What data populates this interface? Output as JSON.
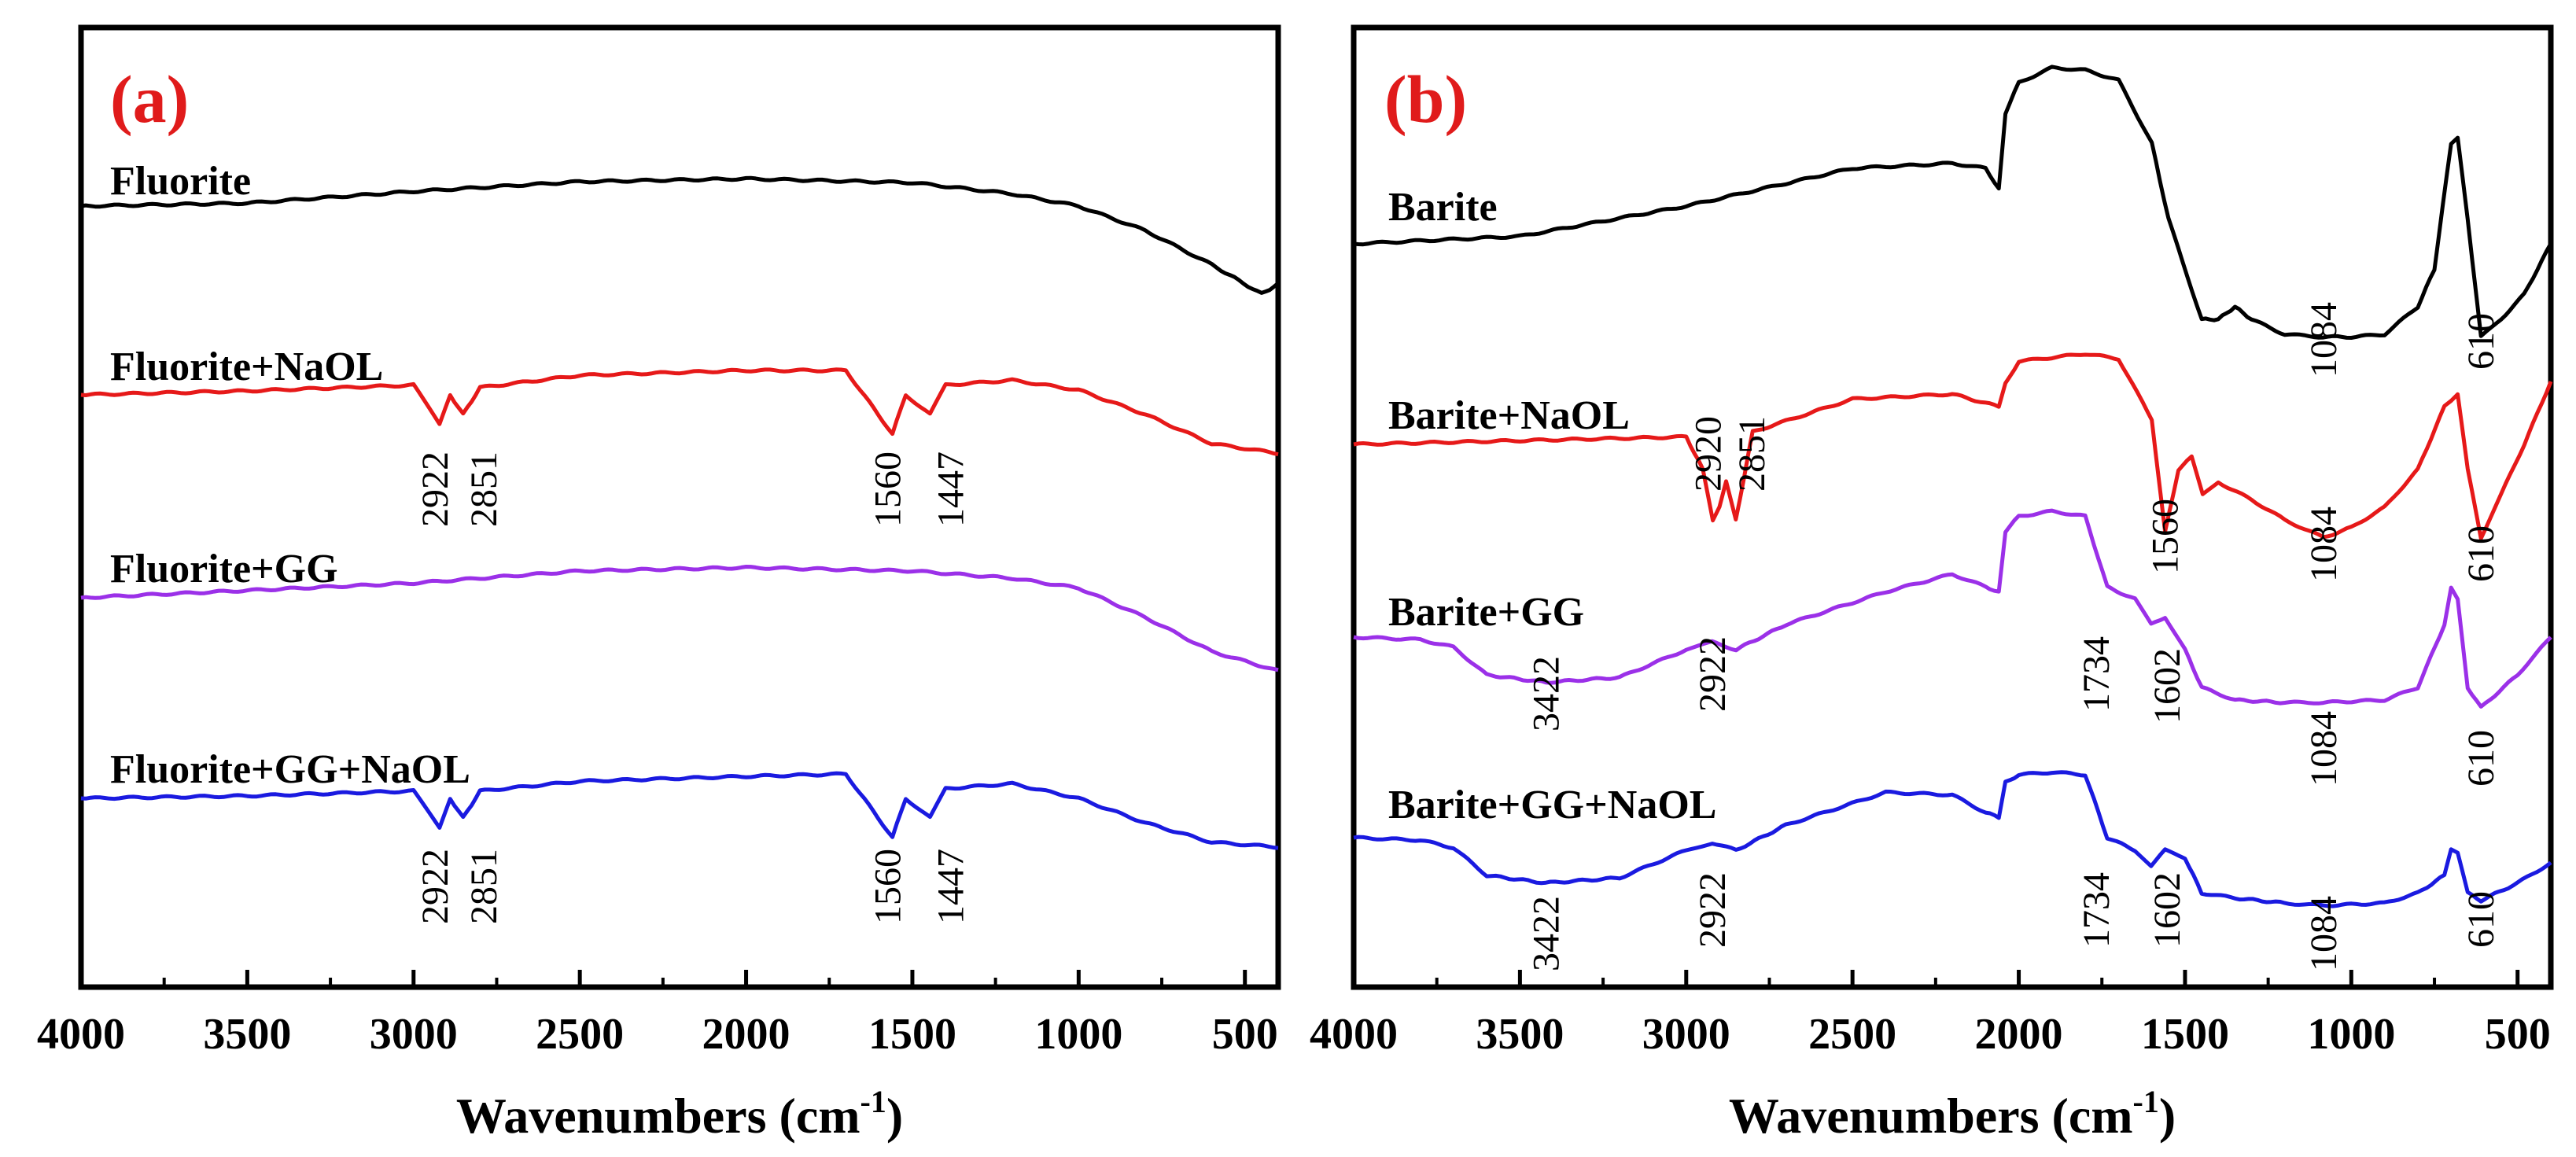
{
  "chart_data": [
    {
      "type": "line",
      "panel_label": "(a)",
      "xlabel": "Wavenumbers (cm",
      "xlabel_sup": "-1",
      "xlabel_close": ")",
      "xlim": [
        4000,
        400
      ],
      "xticks": [
        4000,
        3500,
        3000,
        2500,
        2000,
        1500,
        1000,
        500
      ],
      "colors": {
        "panel_label": "#e01b1b"
      },
      "series": [
        {
          "name": "Fluorite",
          "color": "#000000",
          "points": [
            [
              4000,
              0.0
            ],
            [
              3500,
              0.006
            ],
            [
              3000,
              0.03
            ],
            [
              2500,
              0.05
            ],
            [
              2000,
              0.056
            ],
            [
              1500,
              0.048
            ],
            [
              1200,
              0.025
            ],
            [
              1000,
              0.0
            ],
            [
              800,
              -0.05
            ],
            [
              600,
              -0.12
            ],
            [
              450,
              -0.18
            ],
            [
              400,
              -0.16
            ]
          ],
          "peaks": [],
          "peak_labels": []
        },
        {
          "name": "Fluorite+NaOL",
          "color": "#e61919",
          "points": [
            [
              4000,
              0.0
            ],
            [
              3500,
              0.008
            ],
            [
              3000,
              0.02
            ],
            [
              2922,
              -0.06
            ],
            [
              2890,
              0.0
            ],
            [
              2851,
              -0.04
            ],
            [
              2800,
              0.015
            ],
            [
              2500,
              0.04
            ],
            [
              2000,
              0.05
            ],
            [
              1700,
              0.05
            ],
            [
              1560,
              -0.08
            ],
            [
              1520,
              0.0
            ],
            [
              1447,
              -0.04
            ],
            [
              1400,
              0.02
            ],
            [
              1200,
              0.03
            ],
            [
              1000,
              0.01
            ],
            [
              800,
              -0.04
            ],
            [
              600,
              -0.1
            ],
            [
              400,
              -0.12
            ]
          ],
          "peaks": [],
          "peak_labels": [
            "2922",
            "2851",
            "1560",
            "1447"
          ]
        },
        {
          "name": "Fluorite+GG",
          "color": "#9b30e8",
          "points": [
            [
              4000,
              0.0
            ],
            [
              3500,
              0.015
            ],
            [
              3000,
              0.03
            ],
            [
              2500,
              0.055
            ],
            [
              2000,
              0.062
            ],
            [
              1500,
              0.055
            ],
            [
              1200,
              0.04
            ],
            [
              1000,
              0.02
            ],
            [
              800,
              -0.04
            ],
            [
              600,
              -0.11
            ],
            [
              400,
              -0.15
            ]
          ],
          "peaks": [],
          "peak_labels": []
        },
        {
          "name": "Fluorite+GG+NaOL",
          "color": "#1a1ae0",
          "points": [
            [
              4000,
              0.0
            ],
            [
              3500,
              0.005
            ],
            [
              3000,
              0.015
            ],
            [
              2922,
              -0.06
            ],
            [
              2890,
              0.0
            ],
            [
              2851,
              -0.04
            ],
            [
              2800,
              0.015
            ],
            [
              2500,
              0.035
            ],
            [
              2000,
              0.045
            ],
            [
              1700,
              0.05
            ],
            [
              1560,
              -0.08
            ],
            [
              1520,
              0.0
            ],
            [
              1447,
              -0.04
            ],
            [
              1400,
              0.02
            ],
            [
              1200,
              0.03
            ],
            [
              1000,
              0.0
            ],
            [
              800,
              -0.05
            ],
            [
              600,
              -0.09
            ],
            [
              400,
              -0.1
            ]
          ],
          "peaks": [],
          "peak_labels": [
            "2922",
            "2851",
            "1560",
            "1447"
          ]
        }
      ]
    },
    {
      "type": "line",
      "panel_label": "(b)",
      "xlabel": "Wavenumbers (cm",
      "xlabel_sup": "-1",
      "xlabel_close": ")",
      "xlim": [
        4000,
        400
      ],
      "xticks": [
        4000,
        3500,
        3000,
        2500,
        2000,
        1500,
        1000,
        500
      ],
      "colors": {
        "panel_label": "#e01b1b"
      },
      "series": [
        {
          "name": "Barite",
          "color": "#000000",
          "points": [
            [
              4000,
              0.0
            ],
            [
              3500,
              0.03
            ],
            [
              3000,
              0.15
            ],
            [
              2500,
              0.3
            ],
            [
              2200,
              0.32
            ],
            [
              2100,
              0.3
            ],
            [
              2060,
              0.22
            ],
            [
              2040,
              0.52
            ],
            [
              2000,
              0.64
            ],
            [
              1900,
              0.7
            ],
            [
              1800,
              0.69
            ],
            [
              1700,
              0.65
            ],
            [
              1600,
              0.4
            ],
            [
              1550,
              0.1
            ],
            [
              1450,
              -0.3
            ],
            [
              1400,
              -0.3
            ],
            [
              1350,
              -0.25
            ],
            [
              1300,
              -0.3
            ],
            [
              1200,
              -0.36
            ],
            [
              1084,
              -0.37
            ],
            [
              1000,
              -0.37
            ],
            [
              900,
              -0.36
            ],
            [
              800,
              -0.25
            ],
            [
              750,
              -0.1
            ],
            [
              700,
              0.4
            ],
            [
              680,
              0.42
            ],
            [
              650,
              0.1
            ],
            [
              610,
              -0.37
            ],
            [
              550,
              -0.3
            ],
            [
              480,
              -0.2
            ],
            [
              400,
              0.0
            ]
          ],
          "peaks": [],
          "peak_labels": [
            "1084",
            "610"
          ]
        },
        {
          "name": "Barite+NaOL",
          "color": "#e61919",
          "points": [
            [
              4000,
              0.0
            ],
            [
              3500,
              0.015
            ],
            [
              3000,
              0.03
            ],
            [
              2950,
              -0.1
            ],
            [
              2920,
              -0.3
            ],
            [
              2900,
              -0.25
            ],
            [
              2880,
              -0.15
            ],
            [
              2851,
              -0.3
            ],
            [
              2800,
              0.05
            ],
            [
              2500,
              0.18
            ],
            [
              2200,
              0.2
            ],
            [
              2060,
              0.15
            ],
            [
              2040,
              0.24
            ],
            [
              2000,
              0.33
            ],
            [
              1800,
              0.36
            ],
            [
              1700,
              0.34
            ],
            [
              1600,
              0.1
            ],
            [
              1560,
              -0.35
            ],
            [
              1520,
              -0.1
            ],
            [
              1480,
              -0.05
            ],
            [
              1447,
              -0.2
            ],
            [
              1400,
              -0.15
            ],
            [
              1300,
              -0.22
            ],
            [
              1200,
              -0.3
            ],
            [
              1084,
              -0.37
            ],
            [
              1000,
              -0.33
            ],
            [
              900,
              -0.25
            ],
            [
              800,
              -0.1
            ],
            [
              720,
              0.15
            ],
            [
              700,
              0.17
            ],
            [
              680,
              0.2
            ],
            [
              650,
              -0.1
            ],
            [
              610,
              -0.37
            ],
            [
              550,
              -0.2
            ],
            [
              480,
              0.0
            ],
            [
              400,
              0.25
            ]
          ],
          "peaks": [],
          "peak_labels": [
            "2920",
            "2851",
            "1560",
            "1084",
            "610"
          ]
        },
        {
          "name": "Barite+GG",
          "color": "#9b30e8",
          "points": [
            [
              4000,
              0.0
            ],
            [
              3800,
              -0.01
            ],
            [
              3700,
              -0.04
            ],
            [
              3600,
              -0.15
            ],
            [
              3422,
              -0.18
            ],
            [
              3200,
              -0.16
            ],
            [
              3000,
              -0.05
            ],
            [
              2922,
              -0.02
            ],
            [
              2850,
              -0.05
            ],
            [
              2700,
              0.05
            ],
            [
              2400,
              0.18
            ],
            [
              2200,
              0.25
            ],
            [
              2100,
              0.2
            ],
            [
              2060,
              0.18
            ],
            [
              2040,
              0.42
            ],
            [
              2000,
              0.48
            ],
            [
              1900,
              0.5
            ],
            [
              1800,
              0.48
            ],
            [
              1734,
              0.2
            ],
            [
              1650,
              0.15
            ],
            [
              1602,
              0.05
            ],
            [
              1560,
              0.08
            ],
            [
              1500,
              -0.05
            ],
            [
              1450,
              -0.2
            ],
            [
              1350,
              -0.25
            ],
            [
              1200,
              -0.26
            ],
            [
              1084,
              -0.26
            ],
            [
              900,
              -0.25
            ],
            [
              800,
              -0.2
            ],
            [
              720,
              0.05
            ],
            [
              700,
              0.2
            ],
            [
              680,
              0.15
            ],
            [
              650,
              -0.2
            ],
            [
              610,
              -0.28
            ],
            [
              500,
              -0.15
            ],
            [
              400,
              0.0
            ]
          ],
          "peaks": [],
          "peak_labels": [
            "3422",
            "2922",
            "1734",
            "1602",
            "1084",
            "610"
          ]
        },
        {
          "name": "Barite+GG+NaOL",
          "color": "#1a1ae0",
          "points": [
            [
              4000,
              0.0
            ],
            [
              3800,
              -0.01
            ],
            [
              3700,
              -0.04
            ],
            [
              3600,
              -0.15
            ],
            [
              3422,
              -0.18
            ],
            [
              3200,
              -0.16
            ],
            [
              3000,
              -0.05
            ],
            [
              2922,
              -0.02
            ],
            [
              2850,
              -0.05
            ],
            [
              2700,
              0.05
            ],
            [
              2400,
              0.18
            ],
            [
              2200,
              0.17
            ],
            [
              2100,
              0.1
            ],
            [
              2060,
              0.08
            ],
            [
              2040,
              0.22
            ],
            [
              2000,
              0.25
            ],
            [
              1900,
              0.26
            ],
            [
              1800,
              0.25
            ],
            [
              1734,
              0.0
            ],
            [
              1650,
              -0.05
            ],
            [
              1602,
              -0.11
            ],
            [
              1560,
              -0.05
            ],
            [
              1500,
              -0.08
            ],
            [
              1450,
              -0.22
            ],
            [
              1350,
              -0.24
            ],
            [
              1200,
              -0.26
            ],
            [
              1084,
              -0.27
            ],
            [
              900,
              -0.26
            ],
            [
              800,
              -0.22
            ],
            [
              720,
              -0.15
            ],
            [
              700,
              -0.05
            ],
            [
              680,
              -0.06
            ],
            [
              650,
              -0.22
            ],
            [
              610,
              -0.25
            ],
            [
              500,
              -0.18
            ],
            [
              400,
              -0.1
            ]
          ],
          "peaks": [],
          "peak_labels": [
            "3422",
            "2922",
            "1734",
            "1602",
            "1084",
            "610"
          ]
        }
      ]
    }
  ]
}
